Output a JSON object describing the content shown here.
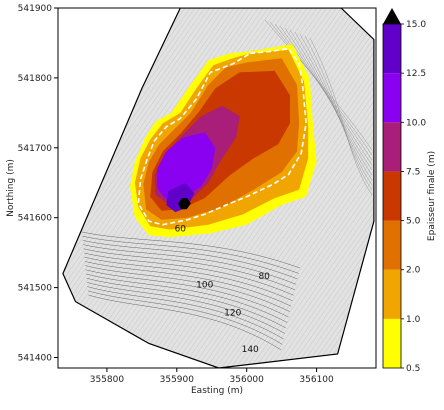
{
  "chart_data": {
    "type": "heatmap",
    "title": "",
    "xlabel": "Easting (m)",
    "ylabel": "Northing (m)",
    "xlim": [
      355730,
      356185
    ],
    "ylim": [
      541385,
      541900
    ],
    "x_ticks": [
      "355800",
      "355900",
      "356000",
      "356100"
    ],
    "y_ticks": [
      "541400",
      "541500",
      "541600",
      "541700",
      "541800",
      "541900"
    ],
    "grid": false,
    "colorbar": {
      "label": "Epaisseur finale (m)",
      "levels": [
        0.5,
        1.0,
        2.0,
        5.0,
        7.5,
        10.0,
        12.5,
        15.0
      ],
      "tick_labels": [
        "0.5",
        "1.0",
        "2.0",
        "5.0",
        "7.5",
        "10.0",
        "12.5",
        "15.0"
      ],
      "colors": [
        "#ffff00",
        "#f0a500",
        "#e07000",
        "#c93800",
        "#a81e78",
        "#8a00f0",
        "#6000c8",
        "#000000"
      ],
      "extend": "max"
    },
    "contour_labels": [
      {
        "text": "60",
        "x": 355905,
        "y": 541580
      },
      {
        "text": "80",
        "x": 356025,
        "y": 541512
      },
      {
        "text": "100",
        "x": 355940,
        "y": 541500
      },
      {
        "text": "120",
        "x": 355980,
        "y": 541460
      },
      {
        "text": "140",
        "x": 356005,
        "y": 541408
      }
    ],
    "outline": [
      [
        356005,
        541835
      ],
      [
        356035,
        541838
      ],
      [
        356060,
        541842
      ],
      [
        356075,
        541820
      ],
      [
        356080,
        541790
      ],
      [
        356085,
        541735
      ],
      [
        356078,
        541692
      ],
      [
        356060,
        541662
      ],
      [
        356038,
        541648
      ],
      [
        356000,
        541630
      ],
      [
        355975,
        541620
      ],
      [
        355940,
        541605
      ],
      [
        355915,
        541597
      ],
      [
        355880,
        541590
      ],
      [
        355860,
        541595
      ],
      [
        355845,
        541620
      ],
      [
        355848,
        541655
      ],
      [
        355858,
        541685
      ],
      [
        355868,
        541710
      ],
      [
        355885,
        541730
      ],
      [
        355905,
        541742
      ],
      [
        355928,
        541770
      ],
      [
        355948,
        541808
      ],
      [
        355980,
        541820
      ]
    ],
    "domain_boundary": [
      [
        355850,
        541785
      ],
      [
        355905,
        541900
      ],
      [
        356135,
        541900
      ],
      [
        356182,
        541855
      ],
      [
        356182,
        541595
      ],
      [
        356130,
        541405
      ],
      [
        355960,
        541385
      ],
      [
        355860,
        541420
      ],
      [
        355755,
        541480
      ],
      [
        355737,
        541520
      ]
    ],
    "thickness_bands": [
      {
        "level": 0.5,
        "polygon": [
          [
            356005,
            541838
          ],
          [
            356065,
            541848
          ],
          [
            356090,
            541800
          ],
          [
            356095,
            541730
          ],
          [
            356100,
            541680
          ],
          [
            356085,
            541630
          ],
          [
            356050,
            541618
          ],
          [
            356000,
            541590
          ],
          [
            355950,
            541578
          ],
          [
            355890,
            541572
          ],
          [
            355860,
            541575
          ],
          [
            355840,
            541600
          ],
          [
            355833,
            541645
          ],
          [
            355840,
            541680
          ],
          [
            355855,
            541715
          ],
          [
            355870,
            541738
          ],
          [
            355892,
            541750
          ],
          [
            355918,
            541788
          ],
          [
            355945,
            541825
          ],
          [
            355975,
            541835
          ]
        ]
      },
      {
        "level": 1.0,
        "polygon": [
          [
            356005,
            541835
          ],
          [
            356060,
            541840
          ],
          [
            356082,
            541795
          ],
          [
            356088,
            541730
          ],
          [
            356088,
            541685
          ],
          [
            356075,
            541640
          ],
          [
            356040,
            541628
          ],
          [
            355995,
            541605
          ],
          [
            355945,
            541590
          ],
          [
            355890,
            541583
          ],
          [
            355862,
            541588
          ],
          [
            355845,
            541615
          ],
          [
            355840,
            541650
          ],
          [
            355848,
            541685
          ],
          [
            355862,
            541712
          ],
          [
            355880,
            541735
          ],
          [
            355905,
            541750
          ],
          [
            355928,
            541785
          ],
          [
            355952,
            541818
          ],
          [
            355980,
            541828
          ]
        ]
      },
      {
        "level": 2.0,
        "polygon": [
          [
            356000,
            541822
          ],
          [
            356050,
            541828
          ],
          [
            356072,
            541790
          ],
          [
            356075,
            541735
          ],
          [
            356072,
            541695
          ],
          [
            356050,
            541665
          ],
          [
            356010,
            541640
          ],
          [
            355965,
            541615
          ],
          [
            355915,
            541600
          ],
          [
            355878,
            541597
          ],
          [
            355856,
            541612
          ],
          [
            355852,
            541648
          ],
          [
            355860,
            541680
          ],
          [
            355875,
            541705
          ],
          [
            355895,
            541725
          ],
          [
            355920,
            541750
          ],
          [
            355945,
            541790
          ],
          [
            355970,
            541815
          ]
        ]
      },
      {
        "level": 5.0,
        "polygon": [
          [
            355990,
            541808
          ],
          [
            356040,
            541810
          ],
          [
            356062,
            541775
          ],
          [
            356062,
            541735
          ],
          [
            356045,
            541705
          ],
          [
            356010,
            541685
          ],
          [
            355975,
            541660
          ],
          [
            355940,
            541628
          ],
          [
            355905,
            541612
          ],
          [
            355878,
            541610
          ],
          [
            355862,
            541630
          ],
          [
            355865,
            541665
          ],
          [
            355880,
            541695
          ],
          [
            355905,
            541720
          ],
          [
            355932,
            541752
          ],
          [
            355955,
            541785
          ]
        ]
      },
      {
        "level": 7.5,
        "polygon": [
          [
            355965,
            541760
          ],
          [
            355990,
            541745
          ],
          [
            355985,
            541715
          ],
          [
            355965,
            541685
          ],
          [
            355945,
            541650
          ],
          [
            355920,
            541625
          ],
          [
            355890,
            541618
          ],
          [
            355870,
            541632
          ],
          [
            355868,
            541660
          ],
          [
            355882,
            541690
          ],
          [
            355905,
            541715
          ],
          [
            355935,
            541745
          ]
        ]
      },
      {
        "level": 10.0,
        "polygon": [
          [
            355940,
            541722
          ],
          [
            355955,
            541700
          ],
          [
            355950,
            541670
          ],
          [
            355935,
            541645
          ],
          [
            355910,
            541628
          ],
          [
            355885,
            541626
          ],
          [
            355872,
            541642
          ],
          [
            355872,
            541670
          ],
          [
            355885,
            541695
          ],
          [
            355910,
            541715
          ]
        ]
      },
      {
        "level": 12.5,
        "polygon": [
          [
            355912,
            541650
          ],
          [
            355925,
            541635
          ],
          [
            355915,
            541615
          ],
          [
            355898,
            541608
          ],
          [
            355885,
            541618
          ],
          [
            355888,
            541638
          ]
        ]
      },
      {
        "level": 15.0,
        "polygon": [
          [
            355915,
            541628
          ],
          [
            355920,
            541620
          ],
          [
            355914,
            541612
          ],
          [
            355906,
            541612
          ],
          [
            355902,
            541620
          ],
          [
            355907,
            541628
          ]
        ]
      }
    ]
  }
}
